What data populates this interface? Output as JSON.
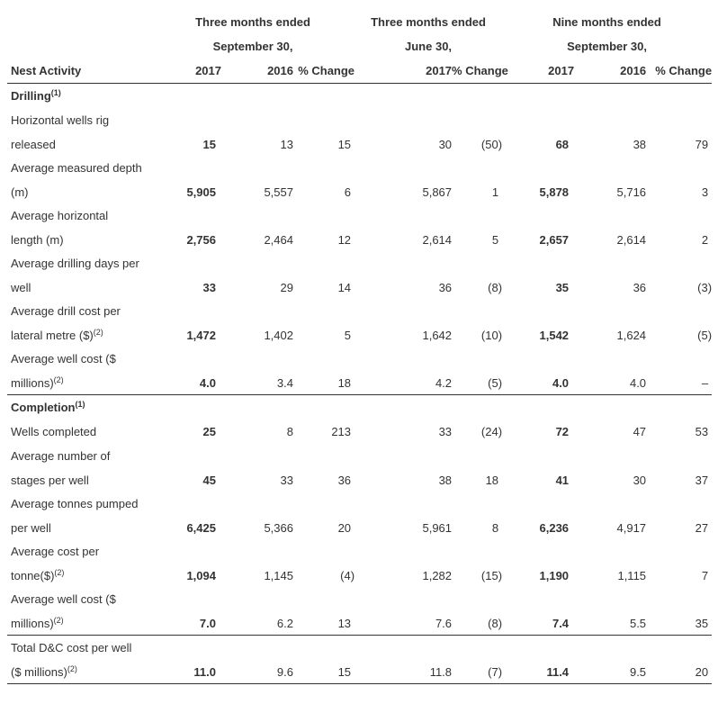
{
  "header": {
    "group1_line1": "Three months ended",
    "group1_line2": "September 30,",
    "group2_line1": "Three months ended",
    "group2_line2": "June 30,",
    "group3_line1": "Nine months ended",
    "group3_line2": "September 30,",
    "col_label": "Nest Activity",
    "cols": [
      "2017",
      "2016",
      "% Change",
      "2017",
      "% Change",
      "2017",
      "2016",
      "% Change"
    ]
  },
  "sections": {
    "drilling": {
      "title": "Drilling",
      "note": "(1)"
    },
    "completion": {
      "title": "Completion",
      "note": "(1)"
    }
  },
  "rows": {
    "hw": {
      "line1": "Horizontal wells rig",
      "line2": "released",
      "note": "",
      "values": [
        "15",
        "13",
        "15",
        "30",
        "(50)",
        "68",
        "38",
        "79"
      ]
    },
    "amd": {
      "line1": "Average measured depth",
      "line2": "(m)",
      "note": "",
      "values": [
        "5,905",
        "5,557",
        "6",
        "5,867",
        "1",
        "5,878",
        "5,716",
        "3"
      ]
    },
    "ahl": {
      "line1": "Average horizontal",
      "line2": "length (m)",
      "note": "",
      "values": [
        "2,756",
        "2,464",
        "12",
        "2,614",
        "5",
        "2,657",
        "2,614",
        "2"
      ]
    },
    "add": {
      "line1": "Average drilling days per",
      "line2": "well",
      "note": "",
      "values": [
        "33",
        "29",
        "14",
        "36",
        "(8)",
        "35",
        "36",
        "(3)"
      ]
    },
    "adc": {
      "line1": "Average drill cost per",
      "line2": "lateral metre ($)",
      "note": "(2)",
      "values": [
        "1,472",
        "1,402",
        "5",
        "1,642",
        "(10)",
        "1,542",
        "1,624",
        "(5)"
      ]
    },
    "awc1": {
      "line1": "Average well cost ($",
      "line2": "millions)",
      "note": "(2)",
      "values": [
        "4.0",
        "3.4",
        "18",
        "4.2",
        "(5)",
        "4.0",
        "4.0",
        "–"
      ]
    },
    "wc": {
      "line1": "Wells completed",
      "line2": "",
      "note": "",
      "values": [
        "25",
        "8",
        "213",
        "33",
        "(24)",
        "72",
        "47",
        "53"
      ]
    },
    "ans": {
      "line1": "Average number of",
      "line2": "stages per well",
      "note": "",
      "values": [
        "45",
        "33",
        "36",
        "38",
        "18",
        "41",
        "30",
        "37"
      ]
    },
    "atp": {
      "line1": "Average tonnes pumped",
      "line2": "per well",
      "note": "",
      "values": [
        "6,425",
        "5,366",
        "20",
        "5,961",
        "8",
        "6,236",
        "4,917",
        "27"
      ]
    },
    "acp": {
      "line1": "Average cost per",
      "line2": "tonne($)",
      "note": "(2)",
      "values": [
        "1,094",
        "1,145",
        "(4)",
        "1,282",
        "(15)",
        "1,190",
        "1,115",
        "7"
      ]
    },
    "awc2": {
      "line1": "Average well cost ($",
      "line2": "millions)",
      "note": "(2)",
      "values": [
        "7.0",
        "6.2",
        "13",
        "7.6",
        "(8)",
        "7.4",
        "5.5",
        "35"
      ]
    },
    "tdc": {
      "line1": "Total D&C cost per well",
      "line2": "($ millions)",
      "note": "(2)",
      "values": [
        "11.0",
        "9.6",
        "15",
        "11.8",
        "(7)",
        "11.4",
        "9.5",
        "20"
      ]
    }
  }
}
